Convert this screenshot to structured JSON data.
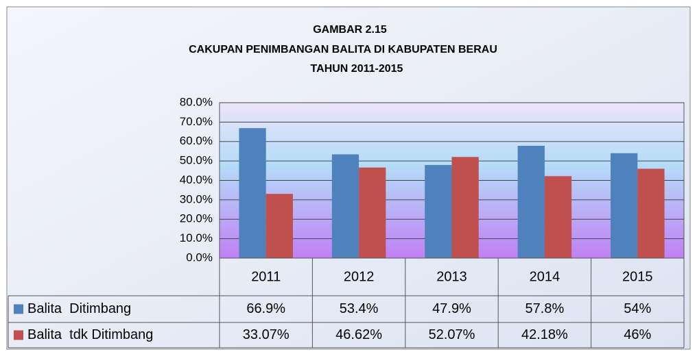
{
  "chart_data": {
    "type": "bar",
    "title": [
      "GAMBAR 2.15",
      "CAKUPAN  PENIMBANGAN BALITA DI KABUPATEN BERAU",
      "TAHUN 2011-2015"
    ],
    "categories": [
      "2011",
      "2012",
      "2013",
      "2014",
      "2015"
    ],
    "series": [
      {
        "name": "Balita  Ditimbang",
        "color": "#4f81bd",
        "values": [
          66.9,
          53.4,
          47.9,
          57.8,
          54
        ],
        "value_labels": [
          "66.9%",
          "53.4%",
          "47.9%",
          "57.8%",
          "54%"
        ]
      },
      {
        "name": "Balita  tdk Ditimbang",
        "color": "#c0504d",
        "values": [
          33.07,
          46.62,
          52.07,
          42.18,
          46
        ],
        "value_labels": [
          "33.07%",
          "46.62%",
          "52.07%",
          "42.18%",
          "46%"
        ]
      }
    ],
    "ylim": [
      0,
      80
    ],
    "yticks": [
      {
        "value": 0,
        "label": "0.0%"
      },
      {
        "value": 10,
        "label": "10.0%"
      },
      {
        "value": 20,
        "label": "20.0%"
      },
      {
        "value": 30,
        "label": "30.0%"
      },
      {
        "value": 40,
        "label": "40.0%"
      },
      {
        "value": 50,
        "label": "50.0%"
      },
      {
        "value": 60,
        "label": "60.0%"
      },
      {
        "value": 70,
        "label": "70.0%"
      },
      {
        "value": 80,
        "label": "80.0%"
      }
    ],
    "grid": true
  }
}
